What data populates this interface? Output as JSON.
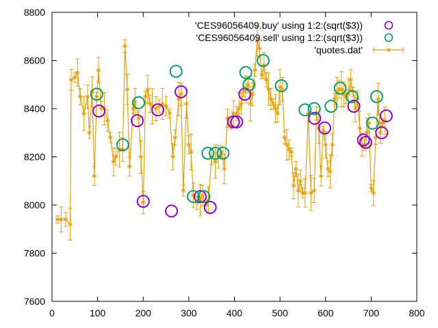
{
  "chart_data": {
    "type": "scatter",
    "xlim": [
      0,
      800
    ],
    "ylim": [
      7600,
      8800
    ],
    "xticks": [
      0,
      100,
      200,
      300,
      400,
      500,
      600,
      700,
      800
    ],
    "yticks": [
      7600,
      7800,
      8000,
      8200,
      8400,
      8600,
      8800
    ],
    "grid": false,
    "legend_position": "top-right",
    "series": [
      {
        "name": "'CES96056409.buy' using 1:2:(sqrt($3))",
        "style": "circles",
        "color": "#9400d3",
        "points": [
          [
            103,
            8390
          ],
          [
            187,
            8350
          ],
          [
            200,
            8015
          ],
          [
            232,
            8395
          ],
          [
            262,
            7975
          ],
          [
            283,
            8470
          ],
          [
            325,
            8035
          ],
          [
            347,
            7990
          ],
          [
            398,
            8345
          ],
          [
            405,
            8345
          ],
          [
            423,
            8460
          ],
          [
            576,
            8360
          ],
          [
            598,
            8320
          ],
          [
            662,
            8410
          ],
          [
            683,
            8270
          ],
          [
            688,
            8260
          ],
          [
            723,
            8300
          ],
          [
            733,
            8370
          ]
        ]
      },
      {
        "name": "'CES96056409.sell' using 1:2:(sqrt($3))",
        "style": "circles",
        "color": "#009e73",
        "points": [
          [
            98,
            8460
          ],
          [
            155,
            8250
          ],
          [
            190,
            8425
          ],
          [
            272,
            8555
          ],
          [
            310,
            8035
          ],
          [
            333,
            8035
          ],
          [
            342,
            8215
          ],
          [
            358,
            8215
          ],
          [
            375,
            8215
          ],
          [
            432,
            8500
          ],
          [
            425,
            8550
          ],
          [
            463,
            8600
          ],
          [
            503,
            8495
          ],
          [
            555,
            8395
          ],
          [
            575,
            8400
          ],
          [
            612,
            8410
          ],
          [
            632,
            8485
          ],
          [
            658,
            8450
          ],
          [
            703,
            8340
          ],
          [
            712,
            8450
          ]
        ]
      },
      {
        "name": "'quotes.dat'",
        "style": "errorbars",
        "color": "#e69f00",
        "points": [
          [
            12,
            7940
          ],
          [
            20,
            7940
          ],
          [
            30,
            7940
          ],
          [
            40,
            7920
          ],
          [
            42,
            8520
          ],
          [
            50,
            8530
          ],
          [
            56,
            8550
          ],
          [
            62,
            8450
          ],
          [
            70,
            8380
          ],
          [
            78,
            8450
          ],
          [
            82,
            8300
          ],
          [
            88,
            8470
          ],
          [
            93,
            8120
          ],
          [
            98,
            8450
          ],
          [
            102,
            8560
          ],
          [
            108,
            8400
          ],
          [
            115,
            8400
          ],
          [
            122,
            8350
          ],
          [
            128,
            8280
          ],
          [
            135,
            8180
          ],
          [
            140,
            8200
          ],
          [
            148,
            8230
          ],
          [
            155,
            8230
          ],
          [
            160,
            8660
          ],
          [
            165,
            8480
          ],
          [
            170,
            8160
          ],
          [
            178,
            8400
          ],
          [
            182,
            8430
          ],
          [
            190,
            8360
          ],
          [
            195,
            8200
          ],
          [
            200,
            8010
          ],
          [
            205,
            8450
          ],
          [
            210,
            8480
          ],
          [
            215,
            8420
          ],
          [
            220,
            8410
          ],
          [
            228,
            8400
          ],
          [
            235,
            8410
          ],
          [
            242,
            8420
          ],
          [
            250,
            8410
          ],
          [
            258,
            8380
          ],
          [
            265,
            8200
          ],
          [
            270,
            8280
          ],
          [
            278,
            8440
          ],
          [
            283,
            8460
          ],
          [
            288,
            8060
          ],
          [
            295,
            8420
          ],
          [
            300,
            8250
          ],
          [
            305,
            8220
          ],
          [
            310,
            8040
          ],
          [
            318,
            8010
          ],
          [
            325,
            8020
          ],
          [
            330,
            8040
          ],
          [
            338,
            8000
          ],
          [
            343,
            8020
          ],
          [
            350,
            8200
          ],
          [
            358,
            8180
          ],
          [
            365,
            8200
          ],
          [
            372,
            8220
          ],
          [
            378,
            8150
          ],
          [
            385,
            8360
          ],
          [
            392,
            8330
          ],
          [
            398,
            8380
          ],
          [
            405,
            8380
          ],
          [
            410,
            8400
          ],
          [
            415,
            8420
          ],
          [
            420,
            8470
          ],
          [
            425,
            8480
          ],
          [
            430,
            8500
          ],
          [
            435,
            8420
          ],
          [
            440,
            8460
          ],
          [
            445,
            8560
          ],
          [
            450,
            8680
          ],
          [
            455,
            8650
          ],
          [
            460,
            8540
          ],
          [
            465,
            8580
          ],
          [
            470,
            8520
          ],
          [
            475,
            8480
          ],
          [
            480,
            8440
          ],
          [
            485,
            8420
          ],
          [
            490,
            8400
          ],
          [
            495,
            8380
          ],
          [
            500,
            8490
          ],
          [
            505,
            8480
          ],
          [
            510,
            8280
          ],
          [
            515,
            8250
          ],
          [
            520,
            8230
          ],
          [
            525,
            8220
          ],
          [
            530,
            8080
          ],
          [
            535,
            8150
          ],
          [
            540,
            8060
          ],
          [
            545,
            8100
          ],
          [
            550,
            8050
          ],
          [
            555,
            8050
          ],
          [
            562,
            8380
          ],
          [
            568,
            8050
          ],
          [
            575,
            8060
          ],
          [
            580,
            8380
          ],
          [
            585,
            8320
          ],
          [
            590,
            8120
          ],
          [
            595,
            8310
          ],
          [
            600,
            8250
          ],
          [
            605,
            8150
          ],
          [
            610,
            8140
          ],
          [
            615,
            8250
          ],
          [
            620,
            8440
          ],
          [
            625,
            8470
          ],
          [
            630,
            8480
          ],
          [
            635,
            8480
          ],
          [
            640,
            8460
          ],
          [
            645,
            8450
          ],
          [
            650,
            8460
          ],
          [
            655,
            8520
          ],
          [
            660,
            8470
          ],
          [
            665,
            8400
          ],
          [
            670,
            8440
          ],
          [
            675,
            8320
          ],
          [
            680,
            8250
          ],
          [
            685,
            8250
          ],
          [
            690,
            8300
          ],
          [
            695,
            8340
          ],
          [
            700,
            8070
          ],
          [
            705,
            8050
          ],
          [
            710,
            8280
          ],
          [
            715,
            8440
          ],
          [
            720,
            8300
          ],
          [
            725,
            8340
          ],
          [
            730,
            8350
          ]
        ]
      }
    ]
  }
}
